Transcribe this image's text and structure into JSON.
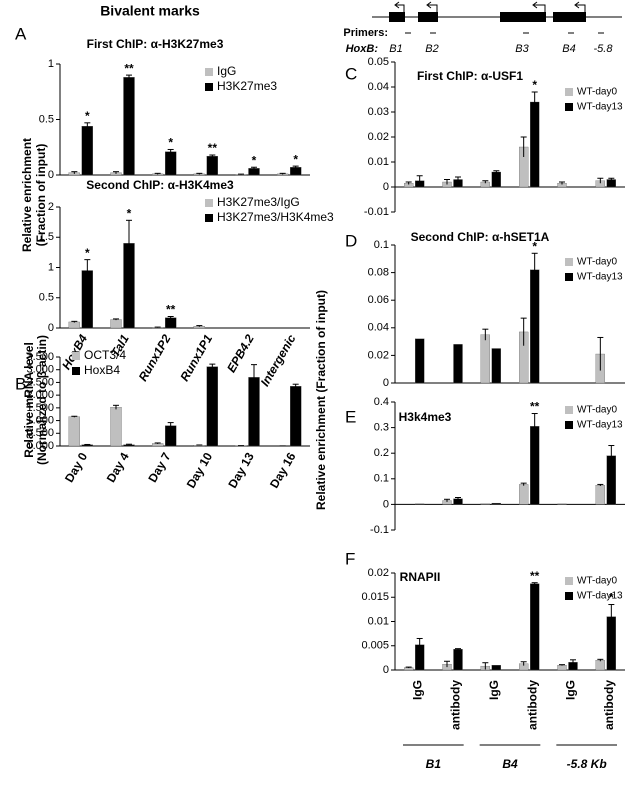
{
  "title": "Bivalent marks",
  "diagram": {
    "primers_label": "Primers:",
    "gene_label": "HoxB:",
    "genes": [
      "B1",
      "B2",
      "B3",
      "B4",
      "-5.8"
    ]
  },
  "chart_data": [
    {
      "type": "bar",
      "panel": "A",
      "title": "First ChIP: α-H3K27me3",
      "ylabel": [
        "Relative enrichment",
        "(Fraction of input)"
      ],
      "series": [
        {
          "name": "IgG",
          "color": "#bfbfbf",
          "values": [
            0.02,
            0.02,
            0.01,
            0.01,
            0.005,
            0.01
          ],
          "errors": [
            0.01,
            0.01,
            0.005,
            0.005,
            0.003,
            0.005
          ]
        },
        {
          "name": "H3K27me3",
          "color": "#000000",
          "values": [
            0.44,
            0.88,
            0.21,
            0.17,
            0.06,
            0.07
          ],
          "errors": [
            0.03,
            0.02,
            0.02,
            0.01,
            0.01,
            0.01
          ]
        }
      ],
      "stars": [
        "*",
        "**",
        "*",
        "**",
        "*",
        "*"
      ],
      "ylim": [
        0,
        1
      ],
      "yticks": [
        0,
        0.5,
        1
      ]
    },
    {
      "type": "bar",
      "title": "Second ChIP: α-H3K4me3",
      "categories": [
        "HoxB4",
        "Tal1",
        "Runx1P2",
        "Runx1P1",
        "EPB4.2",
        "Intergenic"
      ],
      "series": [
        {
          "name": "H3K27me3/IgG",
          "color": "#bfbfbf",
          "values": [
            0.1,
            0.14,
            0.01,
            0.03,
            null,
            null
          ],
          "errors": [
            0.01,
            0.01,
            0.005,
            0.01,
            null,
            null
          ]
        },
        {
          "name": "H3K27me3/H3K4me3",
          "color": "#000000",
          "values": [
            0.95,
            1.4,
            0.17,
            null,
            null,
            null
          ],
          "errors": [
            0.18,
            0.38,
            0.02,
            null,
            null,
            null
          ]
        }
      ],
      "stars": [
        "*",
        "*",
        "**",
        null,
        null,
        null
      ],
      "ylim": [
        0,
        2
      ],
      "yticks": [
        0,
        0.5,
        1,
        1.5,
        2
      ]
    },
    {
      "type": "bar",
      "panel": "B",
      "ylabel": [
        "Relative  mRNA level",
        "(Normalized to β-actin)"
      ],
      "categories": [
        "Day 0",
        "Day 4",
        "Day 7",
        "Day 10",
        "Day 13",
        "Day 16"
      ],
      "series": [
        {
          "name": "OCT3/4",
          "color": "#bfbfbf",
          "values": [
            1.15,
            1.52,
            0.1,
            0.03,
            0.01,
            0
          ],
          "errors": [
            0.02,
            0.08,
            0.02,
            0.01,
            0.005,
            0.005
          ]
        },
        {
          "name": "HoxB4",
          "color": "#000000",
          "values": [
            0.05,
            0.05,
            0.8,
            3.12,
            2.7,
            2.35
          ],
          "errors": [
            0.01,
            0.02,
            0.12,
            0.1,
            0.5,
            0.08
          ]
        }
      ],
      "ylim": [
        0,
        3.5
      ],
      "yticks": [
        {
          "value": 0,
          "label": "0.000"
        },
        {
          "value": 0.5,
          "label": "0.500"
        },
        {
          "value": 1,
          "label": "1.000"
        },
        {
          "value": 1.5,
          "label": "1.500"
        },
        {
          "value": 2,
          "label": "2.000"
        },
        {
          "value": 2.5,
          "label": "2.500"
        },
        {
          "value": 3,
          "label": "3.000"
        },
        {
          "value": 3.5,
          "label": "3.500"
        }
      ]
    },
    {
      "type": "bar",
      "panel": "C",
      "title": "First ChIP: α-USF1",
      "ylabel": [
        "Relative enrichment (Fraction of input)"
      ],
      "series": [
        {
          "name": "WT-day0",
          "color": "#bfbfbf",
          "values": [
            0.0015,
            0.002,
            0.002,
            0.016,
            0.0015,
            0.0025
          ],
          "errors": [
            0.0005,
            0.001,
            0.0005,
            0.004,
            0.0005,
            0.001
          ]
        },
        {
          "name": "WT-day13",
          "color": "#000000",
          "values": [
            0.0025,
            0.003,
            0.006,
            0.034,
            null,
            0.003
          ],
          "errors": [
            0.002,
            0.001,
            0.0005,
            0.004,
            null,
            0.0005
          ]
        }
      ],
      "stars": [
        null,
        null,
        null,
        "*",
        null,
        null
      ],
      "ylim": [
        -0.01,
        0.05
      ],
      "yticks": [
        -0.01,
        0,
        0.01,
        0.02,
        0.03,
        0.04,
        0.05
      ]
    },
    {
      "type": "bar",
      "panel": "D",
      "title": "Second ChIP: α-hSET1A",
      "series": [
        {
          "name": "WT-day0",
          "color": "#bfbfbf",
          "values": [
            null,
            null,
            0.035,
            0.037,
            null,
            0.021
          ],
          "errors": [
            null,
            null,
            0.004,
            0.01,
            null,
            0.012
          ]
        },
        {
          "name": "WT-day13",
          "color": "#000000",
          "values": [
            0.032,
            0.028,
            0.025,
            0.082,
            null,
            null
          ],
          "errors": [
            null,
            null,
            null,
            0.012,
            null,
            null
          ]
        }
      ],
      "stars": [
        null,
        null,
        null,
        "*",
        null,
        null
      ],
      "ylim": [
        0,
        0.1
      ],
      "yticks": [
        0,
        0.02,
        0.04,
        0.06,
        0.08,
        0.1
      ]
    },
    {
      "type": "bar",
      "panel": "E",
      "title": "H3k4me3",
      "series": [
        {
          "name": "WT-day0",
          "color": "#bfbfbf",
          "values": [
            0,
            0.015,
            0.003,
            0.078,
            0.002,
            0.075
          ],
          "errors": [
            null,
            0.005,
            null,
            0.005,
            null,
            0.003
          ]
        },
        {
          "name": "WT-day13",
          "color": "#000000",
          "values": [
            0.002,
            0.022,
            0.005,
            0.305,
            null,
            0.19
          ],
          "errors": [
            null,
            0.005,
            null,
            0.05,
            null,
            0.04
          ]
        }
      ],
      "stars": [
        null,
        null,
        null,
        "**",
        null,
        null
      ],
      "ylim": [
        -0.1,
        0.4
      ],
      "yticks": [
        -0.1,
        0,
        0.1,
        0.2,
        0.3,
        0.4
      ]
    },
    {
      "type": "bar",
      "panel": "F",
      "title": "RNAPII",
      "categories": [
        "IgG",
        "antibody",
        "IgG",
        "antibody",
        "IgG",
        "antibody"
      ],
      "groups": [
        "B1",
        "B4",
        "-5.8 Kb"
      ],
      "series": [
        {
          "name": "WT-day0",
          "color": "#bfbfbf",
          "values": [
            0.0005,
            0.0012,
            0.0008,
            0.0013,
            0.001,
            0.002
          ],
          "errors": [
            0.0001,
            0.0006,
            0.0007,
            0.0004,
            0.0001,
            0.0002
          ]
        },
        {
          "name": "WT-day13",
          "color": "#000000",
          "values": [
            0.0052,
            0.0043,
            0.001,
            0.0178,
            0.0016,
            0.011
          ],
          "errors": [
            0.0013,
            0.0001,
            null,
            0.0002,
            0.0005,
            0.0025
          ]
        }
      ],
      "stars": [
        null,
        null,
        null,
        "**",
        null,
        "*"
      ],
      "ylim": [
        0,
        0.02
      ],
      "yticks": [
        0,
        0.005,
        0.01,
        0.015,
        0.02
      ]
    }
  ]
}
